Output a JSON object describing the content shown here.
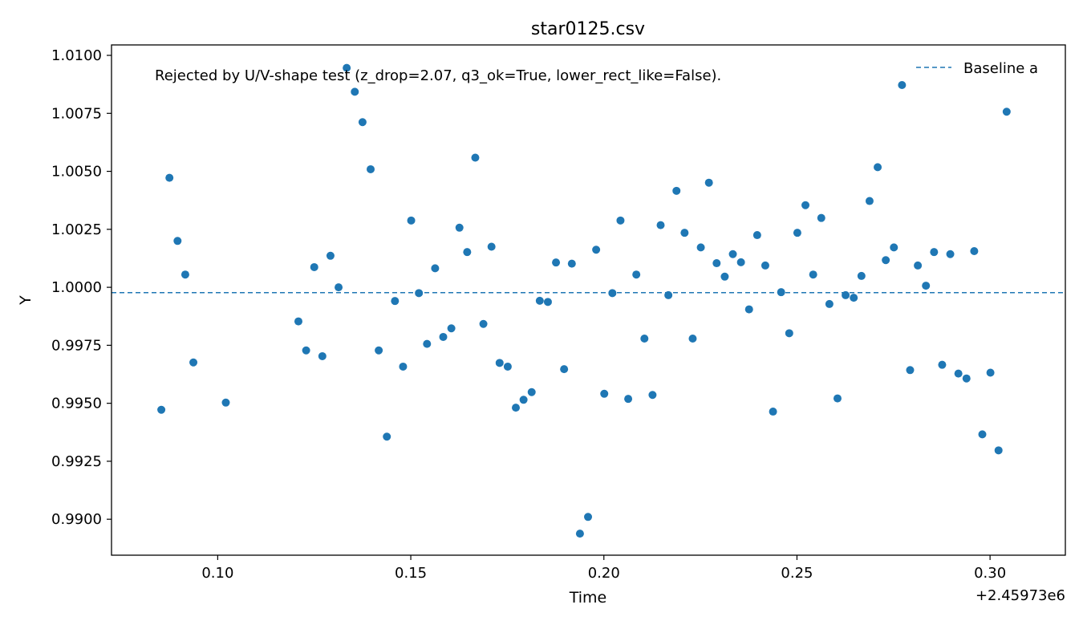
{
  "chart_data": {
    "type": "scatter",
    "title": "star0125.csv",
    "xlabel": "Time",
    "ylabel": "Y",
    "x_offset_label": "+2.45973e6",
    "annotation": "Rejected by U/V-shape test (z_drop=2.07, q3_ok=True, lower_rect_like=False).",
    "xlim": [
      0.0725,
      0.3195
    ],
    "ylim": [
      0.98845,
      1.01045
    ],
    "xticks": [
      0.1,
      0.15,
      0.2,
      0.25,
      0.3
    ],
    "xtick_labels": [
      "0.10",
      "0.15",
      "0.20",
      "0.25",
      "0.30"
    ],
    "yticks": [
      0.99,
      0.9925,
      0.995,
      0.9975,
      1.0,
      1.0025,
      1.005,
      1.0075,
      1.01
    ],
    "ytick_labels": [
      "0.9900",
      "0.9925",
      "0.9950",
      "0.9975",
      "1.0000",
      "1.0025",
      "1.0050",
      "1.0075",
      "1.0100"
    ],
    "grid": false,
    "legend_position": "top-right",
    "baseline": {
      "name": "Baseline a",
      "y": 0.99977,
      "style": "dashed",
      "color": "#1f77b4"
    },
    "series": [
      {
        "color": "#1f77b4",
        "points": [
          [
            0.0854,
            0.99472
          ],
          [
            0.0875,
            1.00472
          ],
          [
            0.0896,
            1.002
          ],
          [
            0.0916,
            1.00055
          ],
          [
            0.0937,
            0.99676
          ],
          [
            0.1021,
            0.99503
          ],
          [
            0.1209,
            0.99853
          ],
          [
            0.1229,
            0.99728
          ],
          [
            0.125,
            1.00087
          ],
          [
            0.1271,
            0.99703
          ],
          [
            0.1292,
            1.00136
          ],
          [
            0.1313,
            1.0
          ],
          [
            0.1334,
            1.00946
          ],
          [
            0.1355,
            1.00843
          ],
          [
            0.1375,
            1.00712
          ],
          [
            0.1396,
            1.00509
          ],
          [
            0.1417,
            0.99728
          ],
          [
            0.1438,
            0.99356
          ],
          [
            0.1459,
            0.99941
          ],
          [
            0.148,
            0.99658
          ],
          [
            0.1501,
            1.00288
          ],
          [
            0.1521,
            0.99975
          ],
          [
            0.1542,
            0.99756
          ],
          [
            0.1563,
            1.00082
          ],
          [
            0.1584,
            0.99786
          ],
          [
            0.1605,
            0.99823
          ],
          [
            0.1626,
            1.00257
          ],
          [
            0.1646,
            1.00152
          ],
          [
            0.1667,
            1.00559
          ],
          [
            0.1688,
            0.99842
          ],
          [
            0.1709,
            1.00175
          ],
          [
            0.173,
            0.99674
          ],
          [
            0.1751,
            0.99658
          ],
          [
            0.1772,
            0.99481
          ],
          [
            0.1792,
            0.99515
          ],
          [
            0.1813,
            0.99548
          ],
          [
            0.1834,
            0.99942
          ],
          [
            0.1855,
            0.99937
          ],
          [
            0.1876,
            1.00107
          ],
          [
            0.1897,
            0.99647
          ],
          [
            0.1917,
            1.00102
          ],
          [
            0.1938,
            0.98938
          ],
          [
            0.1959,
            0.9901
          ],
          [
            0.198,
            1.00162
          ],
          [
            0.2001,
            0.99541
          ],
          [
            0.2022,
            0.99975
          ],
          [
            0.2043,
            1.00288
          ],
          [
            0.2063,
            0.99519
          ],
          [
            0.2084,
            1.00055
          ],
          [
            0.2105,
            0.99779
          ],
          [
            0.2126,
            0.99536
          ],
          [
            0.2147,
            1.00268
          ],
          [
            0.2167,
            0.99966
          ],
          [
            0.2188,
            1.00416
          ],
          [
            0.2209,
            1.00235
          ],
          [
            0.223,
            0.99779
          ],
          [
            0.2251,
            1.00172
          ],
          [
            0.2272,
            1.00451
          ],
          [
            0.2292,
            1.00104
          ],
          [
            0.2313,
            1.00046
          ],
          [
            0.2334,
            1.00143
          ],
          [
            0.2355,
            1.00108
          ],
          [
            0.2376,
            0.99905
          ],
          [
            0.2397,
            1.00225
          ],
          [
            0.2418,
            1.00094
          ],
          [
            0.2438,
            0.99464
          ],
          [
            0.2459,
            0.99979
          ],
          [
            0.248,
            0.99802
          ],
          [
            0.2501,
            1.00235
          ],
          [
            0.2522,
            1.00354
          ],
          [
            0.2542,
            1.00055
          ],
          [
            0.2563,
            1.00299
          ],
          [
            0.2584,
            0.99928
          ],
          [
            0.2605,
            0.99521
          ],
          [
            0.2626,
            0.99966
          ],
          [
            0.2647,
            0.99955
          ],
          [
            0.2667,
            1.00049
          ],
          [
            0.2688,
            1.00372
          ],
          [
            0.2709,
            1.00518
          ],
          [
            0.273,
            1.00117
          ],
          [
            0.2751,
            1.00172
          ],
          [
            0.2772,
            1.00872
          ],
          [
            0.2793,
            0.99643
          ],
          [
            0.2813,
            1.00094
          ],
          [
            0.2834,
            1.00007
          ],
          [
            0.2855,
            1.00152
          ],
          [
            0.2876,
            0.99666
          ],
          [
            0.2897,
            1.00143
          ],
          [
            0.2918,
            0.99628
          ],
          [
            0.2939,
            0.99607
          ],
          [
            0.2959,
            1.00156
          ],
          [
            0.298,
            0.99366
          ],
          [
            0.3001,
            0.99632
          ],
          [
            0.3022,
            0.99297
          ],
          [
            0.3043,
            1.00757
          ]
        ]
      }
    ]
  }
}
